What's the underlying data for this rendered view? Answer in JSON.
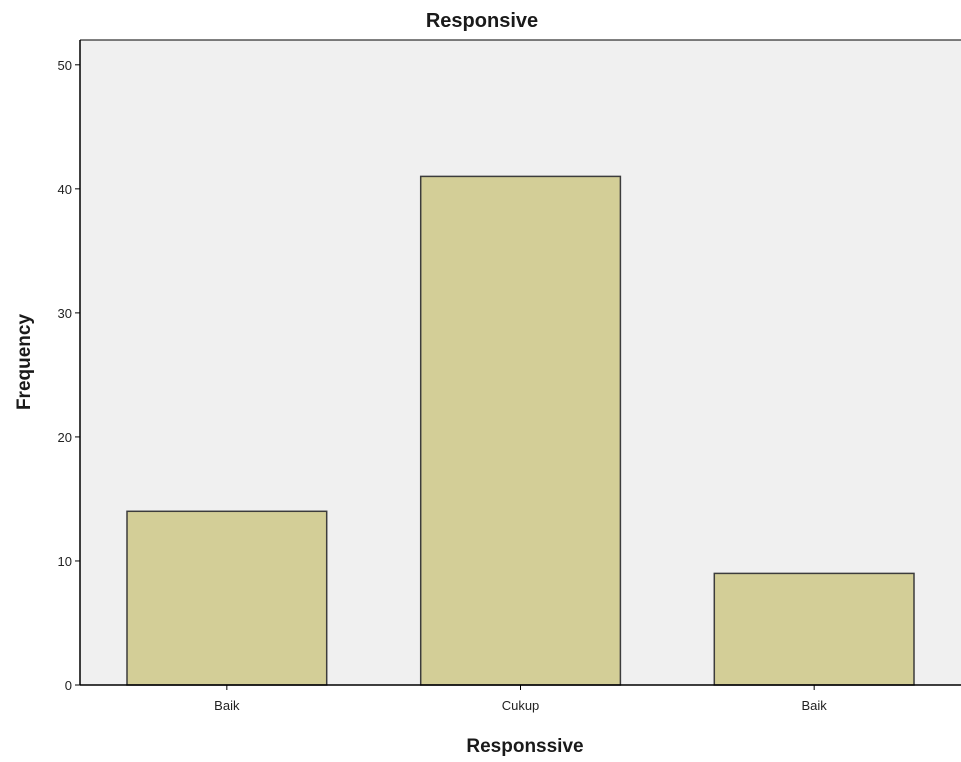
{
  "chart_data": {
    "type": "bar",
    "title": "Responsive",
    "xlabel": "Responssive",
    "ylabel": "Frequency",
    "categories": [
      "Baik",
      "Cukup",
      "Baik"
    ],
    "values": [
      14,
      41,
      9
    ],
    "ylim": [
      0,
      52
    ],
    "yticks": [
      0,
      10,
      20,
      30,
      40,
      50
    ],
    "ytick_labels": [
      "0",
      "10",
      "20",
      "30",
      "40",
      "50"
    ],
    "grid": false,
    "legend": "none",
    "colors": {
      "plot_background": "#f0f0f0",
      "bar_fill": "#d3ce97",
      "bar_stroke": "#3c3c3c",
      "axis": "#000000"
    }
  }
}
